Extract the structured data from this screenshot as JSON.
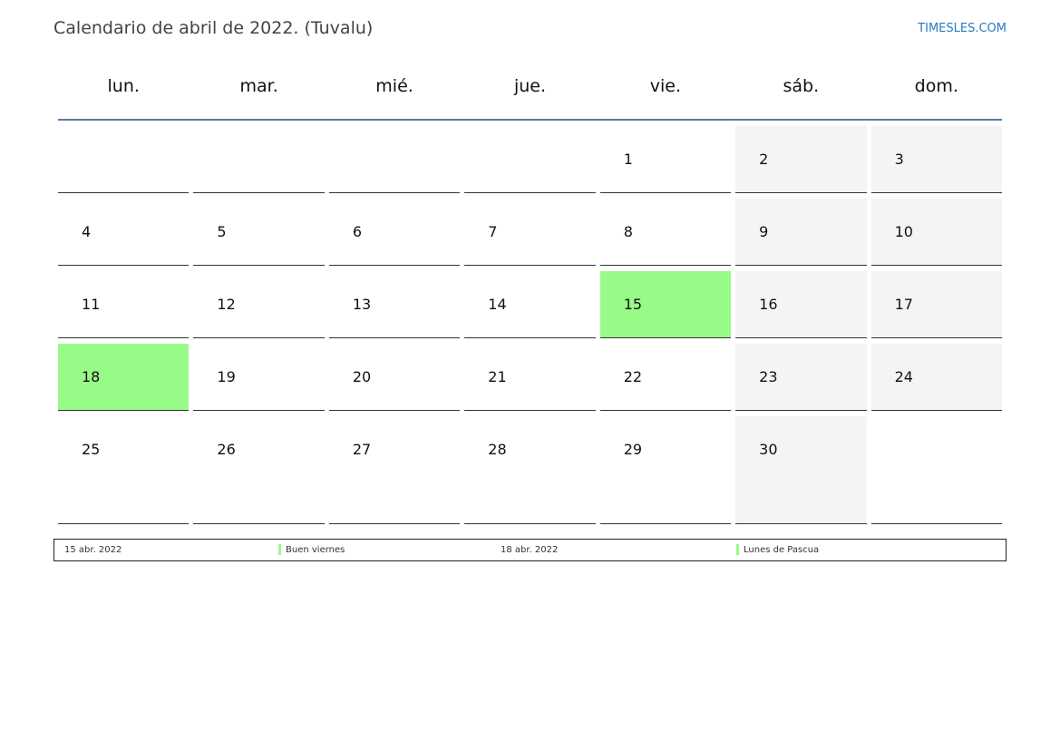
{
  "title": "Calendario de abril de 2022. (Tuvalu)",
  "brand": "TIMESLES.COM",
  "colors": {
    "holiday": "#99fb87",
    "weekend": "#f4f4f4",
    "rule": "#5a7aa0",
    "brand": "#2a7ac4"
  },
  "weekdays": [
    "lun.",
    "mar.",
    "mié.",
    "jue.",
    "vie.",
    "sáb.",
    "dom."
  ],
  "weeks": [
    [
      null,
      null,
      null,
      null,
      "1",
      "2",
      "3"
    ],
    [
      "4",
      "5",
      "6",
      "7",
      "8",
      "9",
      "10"
    ],
    [
      "11",
      "12",
      "13",
      "14",
      "15",
      "16",
      "17"
    ],
    [
      "18",
      "19",
      "20",
      "21",
      "22",
      "23",
      "24"
    ],
    [
      "25",
      "26",
      "27",
      "28",
      "29",
      "30",
      null
    ]
  ],
  "holidays_days": [
    "15",
    "18"
  ],
  "legend": [
    {
      "date": "15 abr. 2022",
      "name": "Buen viernes"
    },
    {
      "date": "18 abr. 2022",
      "name": "Lunes de Pascua"
    }
  ]
}
